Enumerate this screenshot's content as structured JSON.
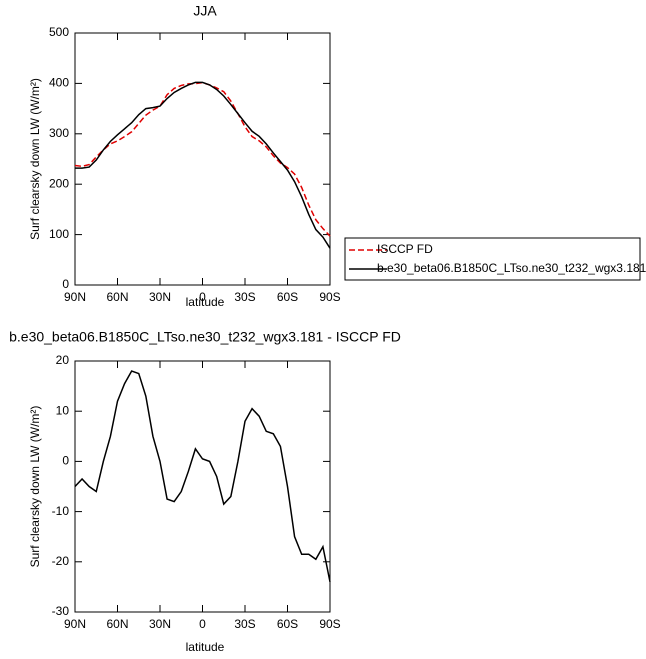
{
  "chart_data": [
    {
      "type": "line",
      "title": "JJA",
      "x_label": "latitude",
      "y_label": "Surf clearsky down LW (W/m²)",
      "x": [
        90,
        85,
        80,
        75,
        70,
        65,
        60,
        55,
        50,
        45,
        40,
        35,
        30,
        25,
        20,
        15,
        10,
        5,
        0,
        -5,
        -10,
        -15,
        -20,
        -25,
        -30,
        -35,
        -40,
        -45,
        -50,
        -55,
        -60,
        -65,
        -70,
        -75,
        -80,
        -85,
        -90
      ],
      "series": [
        {
          "name": "ISCCP FD",
          "color": "#e00000",
          "dash": true,
          "values": [
            237,
            235.5,
            239,
            254,
            268,
            280,
            286,
            294.5,
            304,
            320.5,
            337,
            347,
            355,
            377.5,
            390,
            396,
            399,
            399.5,
            401.5,
            397,
            391,
            383.5,
            365,
            340,
            314,
            294.5,
            286,
            274,
            256.5,
            242,
            233,
            220,
            193.5,
            158.5,
            129.5,
            112,
            97
          ]
        },
        {
          "name": "b.e30_beta06.B1850C_LTso.ne30_t232_wgx3.181",
          "color": "#000000",
          "dash": false,
          "values": [
            232,
            232,
            234,
            248,
            268,
            285,
            298,
            310,
            322,
            338,
            350,
            352,
            355,
            370,
            382,
            390,
            397,
            402,
            402,
            397,
            388,
            375,
            358,
            340,
            322,
            305,
            295,
            280,
            262,
            245,
            228,
            205,
            175,
            140,
            110,
            95,
            73
          ]
        }
      ],
      "xlim": [
        90,
        -90
      ],
      "xticks": [
        {
          "value": 90,
          "label": "90N"
        },
        {
          "value": 60,
          "label": "60N"
        },
        {
          "value": 30,
          "label": "30N"
        },
        0,
        {
          "value": -30,
          "label": "30S"
        },
        {
          "value": -60,
          "label": "60S"
        },
        {
          "value": -90,
          "label": "90S"
        }
      ],
      "ylim": [
        0,
        500
      ],
      "yticks": [
        0,
        100,
        200,
        300,
        400,
        500
      ]
    },
    {
      "type": "line",
      "title": "b.e30_beta06.B1850C_LTso.ne30_t232_wgx3.181 - ISCCP FD",
      "x_label": "latitude",
      "y_label": "Surf clearsky down LW (W/m²)",
      "x": [
        90,
        85,
        80,
        75,
        70,
        65,
        60,
        55,
        50,
        45,
        40,
        35,
        30,
        25,
        20,
        15,
        10,
        5,
        0,
        -5,
        -10,
        -15,
        -20,
        -25,
        -30,
        -35,
        -40,
        -45,
        -50,
        -55,
        -60,
        -65,
        -70,
        -75,
        -80,
        -85,
        -90
      ],
      "color": "#000000",
      "values": [
        -5,
        -3.5,
        -5,
        -6,
        0,
        5,
        12,
        15.5,
        18,
        17.5,
        13,
        5,
        0,
        -7.5,
        -8,
        -6,
        -2,
        2.5,
        0.5,
        0,
        -3,
        -8.5,
        -7,
        0,
        8,
        10.5,
        9,
        6,
        5.5,
        3,
        -5,
        -15,
        -18.5,
        -18.5,
        -19.5,
        -17,
        -24
      ],
      "xlim": [
        90,
        -90
      ],
      "xticks": [
        {
          "value": 90,
          "label": "90N"
        },
        {
          "value": 60,
          "label": "60N"
        },
        {
          "value": 30,
          "label": "30N"
        },
        0,
        {
          "value": -30,
          "label": "30S"
        },
        {
          "value": -60,
          "label": "60S"
        },
        {
          "value": -90,
          "label": "90S"
        }
      ],
      "ylim": [
        -30,
        20
      ],
      "yticks": [
        -30,
        -20,
        -10,
        0,
        10,
        20
      ]
    }
  ]
}
